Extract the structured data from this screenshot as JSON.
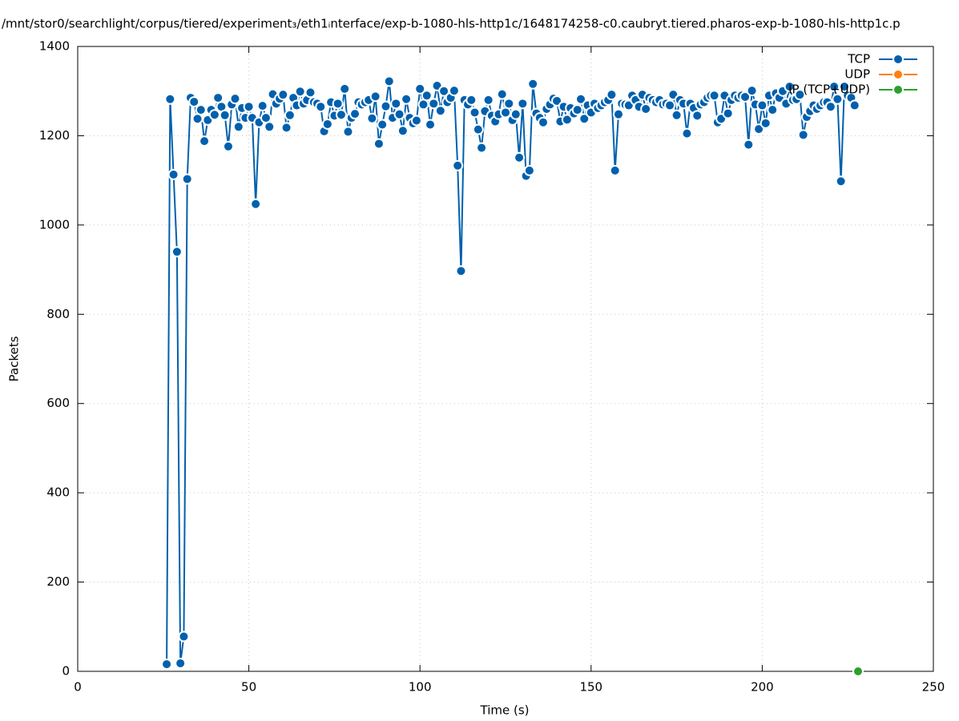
{
  "chart_data": {
    "type": "line",
    "title": "/mnt/stor0/searchlight/corpus/tiered/experiment₃/eth1ᵢnterface/exp-b-1080-hls-http1c/1648174258-c0.caubryt.tiered.pharos-exp-b-1080-hls-http1c.p",
    "x_label": "Time (s)",
    "y_label": "Packets",
    "xlim": [
      0,
      250
    ],
    "xticks": [
      0,
      50,
      100,
      150,
      200,
      250
    ],
    "ylim": [
      0,
      1400
    ],
    "yticks": [
      0,
      200,
      400,
      600,
      800,
      1000,
      1200,
      1400
    ],
    "grid": true,
    "legend": "top-right",
    "series": [
      {
        "name": "TCP",
        "color": "#0060ad",
        "x": [
          26,
          27,
          28,
          29,
          30,
          31,
          32,
          33,
          34,
          35,
          36,
          37,
          38,
          39,
          40,
          41,
          42,
          43,
          44,
          45,
          46,
          47,
          48,
          49,
          50,
          51,
          52,
          53,
          54,
          55,
          56,
          57,
          58,
          59,
          60,
          61,
          62,
          63,
          64,
          65,
          66,
          67,
          68,
          69,
          70,
          71,
          72,
          73,
          74,
          75,
          76,
          77,
          78,
          79,
          80,
          81,
          82,
          83,
          84,
          85,
          86,
          87,
          88,
          89,
          90,
          91,
          92,
          93,
          94,
          95,
          96,
          97,
          98,
          99,
          100,
          101,
          102,
          103,
          104,
          105,
          106,
          107,
          108,
          109,
          110,
          111,
          112,
          113,
          114,
          115,
          116,
          117,
          118,
          119,
          120,
          121,
          122,
          123,
          124,
          125,
          126,
          127,
          128,
          129,
          130,
          131,
          132,
          133,
          134,
          135,
          136,
          137,
          138,
          139,
          140,
          141,
          142,
          143,
          144,
          145,
          146,
          147,
          148,
          149,
          150,
          151,
          152,
          153,
          154,
          155,
          156,
          157,
          158,
          159,
          160,
          161,
          162,
          163,
          164,
          165,
          166,
          167,
          168,
          169,
          170,
          171,
          172,
          173,
          174,
          175,
          176,
          177,
          178,
          179,
          180,
          181,
          182,
          183,
          184,
          185,
          186,
          187,
          188,
          189,
          190,
          191,
          192,
          193,
          194,
          195,
          196,
          197,
          198,
          199,
          200,
          201,
          202,
          203,
          204,
          205,
          206,
          207,
          208,
          209,
          210,
          211,
          212,
          213,
          214,
          215,
          216,
          217,
          218,
          219,
          220,
          221,
          222,
          223,
          224,
          225,
          226,
          227
        ],
        "values": [
          16,
          1282,
          1113,
          940,
          18,
          78,
          1103,
          1285,
          1276,
          1238,
          1258,
          1188,
          1235,
          1258,
          1247,
          1285,
          1265,
          1246,
          1176,
          1270,
          1283,
          1220,
          1262,
          1240,
          1265,
          1240,
          1047,
          1230,
          1267,
          1240,
          1220,
          1293,
          1272,
          1283,
          1292,
          1218,
          1246,
          1285,
          1268,
          1299,
          1272,
          1280,
          1297,
          1275,
          1272,
          1265,
          1210,
          1226,
          1275,
          1245,
          1272,
          1247,
          1305,
          1209,
          1240,
          1249,
          1275,
          1270,
          1275,
          1280,
          1239,
          1288,
          1182,
          1225,
          1266,
          1322,
          1240,
          1272,
          1248,
          1211,
          1282,
          1240,
          1228,
          1234,
          1305,
          1270,
          1290,
          1225,
          1272,
          1312,
          1256,
          1300,
          1275,
          1285,
          1301,
          1133,
          897,
          1280,
          1270,
          1280,
          1252,
          1214,
          1173,
          1255,
          1280,
          1245,
          1232,
          1248,
          1293,
          1252,
          1272,
          1235,
          1248,
          1151,
          1272,
          1110,
          1122,
          1316,
          1250,
          1240,
          1230,
          1260,
          1270,
          1283,
          1278,
          1232,
          1265,
          1236,
          1262,
          1250,
          1258,
          1282,
          1238,
          1268,
          1252,
          1272,
          1262,
          1268,
          1275,
          1280,
          1292,
          1122,
          1248,
          1272,
          1270,
          1268,
          1290,
          1280,
          1265,
          1292,
          1260,
          1285,
          1280,
          1275,
          1280,
          1270,
          1272,
          1268,
          1292,
          1246,
          1280,
          1272,
          1205,
          1272,
          1262,
          1245,
          1270,
          1275,
          1285,
          1290,
          1290,
          1230,
          1238,
          1290,
          1250,
          1280,
          1290,
          1285,
          1290,
          1287,
          1180,
          1301,
          1270,
          1215,
          1268,
          1228,
          1290,
          1258,
          1295,
          1285,
          1300,
          1272,
          1310,
          1280,
          1282,
          1292,
          1202,
          1242,
          1255,
          1268,
          1260,
          1268,
          1275,
          1275,
          1265,
          1310,
          1282,
          1098,
          1310,
          1290,
          1285,
          1268
        ]
      },
      {
        "name": "UDP",
        "color": "#ff7f0e",
        "x": [
          228
        ],
        "values": [
          0
        ]
      },
      {
        "name": "IP (TCP+UDP)",
        "color": "#2ca02c",
        "x": [
          228
        ],
        "values": [
          0
        ]
      }
    ]
  }
}
